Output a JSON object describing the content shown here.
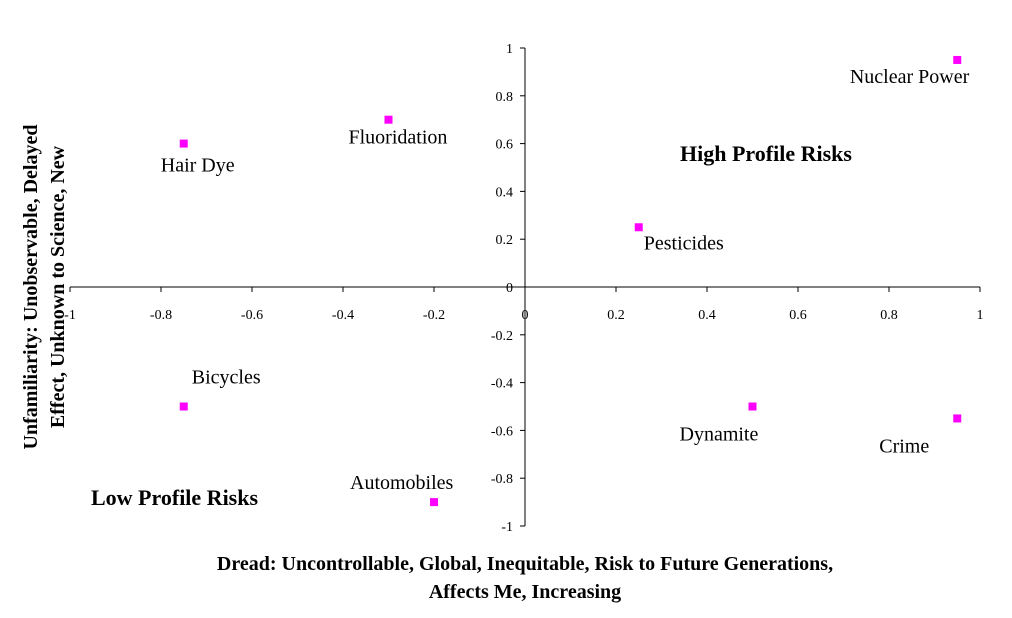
{
  "chart_data": {
    "type": "scatter",
    "title": "",
    "xlabel_lines": [
      "Dread:  Uncontrollable, Global, Inequitable, Risk to Future Generations,",
      "Affects Me, Increasing"
    ],
    "ylabel_lines": [
      "Unfamiliarity:  Unobservable, Delayed",
      "Effect, Unknown to Science, New"
    ],
    "xlim": [
      -1,
      1
    ],
    "ylim": [
      -1,
      1
    ],
    "x_ticks": [
      {
        "value": -1,
        "label": "-1"
      },
      {
        "value": -0.8,
        "label": "-0.8"
      },
      {
        "value": -0.6,
        "label": "-0.6"
      },
      {
        "value": -0.4,
        "label": "-0.4"
      },
      {
        "value": -0.2,
        "label": "-0.2"
      },
      {
        "value": 0,
        "label": "0"
      },
      {
        "value": 0.2,
        "label": "0.2"
      },
      {
        "value": 0.4,
        "label": "0.4"
      },
      {
        "value": 0.6,
        "label": "0.6"
      },
      {
        "value": 0.8,
        "label": "0.8"
      },
      {
        "value": 1,
        "label": "1"
      }
    ],
    "y_ticks": [
      {
        "value": 1,
        "label": "1"
      },
      {
        "value": 0.8,
        "label": "0.8"
      },
      {
        "value": 0.6,
        "label": "0.6"
      },
      {
        "value": 0.4,
        "label": "0.4"
      },
      {
        "value": 0.2,
        "label": "0.2"
      },
      {
        "value": 0,
        "label": "0"
      },
      {
        "value": -0.2,
        "label": "-0.2"
      },
      {
        "value": -0.4,
        "label": "-0.4"
      },
      {
        "value": -0.6,
        "label": "-0.6"
      },
      {
        "value": -0.8,
        "label": "-0.8"
      },
      {
        "value": -1,
        "label": "-1"
      }
    ],
    "grid": false,
    "marker_color": "#ff00ff",
    "points": [
      {
        "label": "Nuclear Power",
        "x": 0.95,
        "y": 0.95
      },
      {
        "label": "Fluoridation",
        "x": -0.3,
        "y": 0.7
      },
      {
        "label": "Hair Dye",
        "x": -0.75,
        "y": 0.6
      },
      {
        "label": "Pesticides",
        "x": 0.25,
        "y": 0.25
      },
      {
        "label": "Bicycles",
        "x": -0.75,
        "y": -0.5
      },
      {
        "label": "Dynamite",
        "x": 0.5,
        "y": -0.5
      },
      {
        "label": "Crime",
        "x": 0.95,
        "y": -0.55
      },
      {
        "label": "Automobiles",
        "x": -0.2,
        "y": -0.9
      }
    ],
    "annotations": [
      {
        "text": "High Profile Risks",
        "quadrant": "upper-right"
      },
      {
        "text": "Low Profile Risks",
        "quadrant": "lower-left"
      }
    ]
  }
}
